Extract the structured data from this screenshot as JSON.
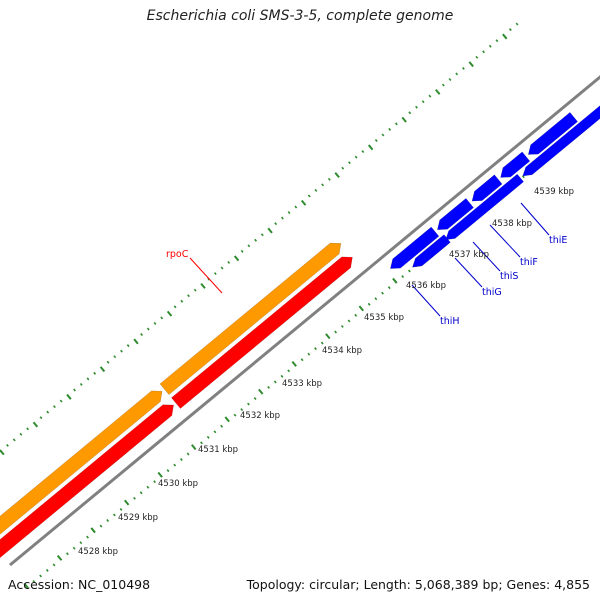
{
  "title": "Escherichia coli SMS-3-5, complete genome",
  "accession": "Accession: NC_010498",
  "summary": "Topology: circular; Length: 5,068,389 bp; Genes: 4,855",
  "colors": {
    "backbone": "#808080",
    "tick": "#2e8b2e",
    "forward_gene": "#ff9900",
    "reverse_gene": "#ff0000",
    "thi_gene": "#0000ff",
    "pseudo_gene": "#bbbbbb",
    "rpo_label": "#ff0000",
    "thi_label": "#0000cc"
  },
  "position_labels": [
    "4528 kbp",
    "4529 kbp",
    "4530 kbp",
    "4531 kbp",
    "4532 kbp",
    "4533 kbp",
    "4534 kbp",
    "4535 kbp",
    "4536 kbp",
    "4537 kbp",
    "4538 kbp",
    "4539 kbp"
  ],
  "gene_labels": [
    {
      "id": "rpoC",
      "text": "rpoC"
    },
    {
      "id": "thiH",
      "text": "thiH"
    },
    {
      "id": "thiG",
      "text": "thiG"
    },
    {
      "id": "thiS",
      "text": "thiS"
    },
    {
      "id": "thiF",
      "text": "thiF"
    },
    {
      "id": "thiE",
      "text": "thiE"
    }
  ]
}
